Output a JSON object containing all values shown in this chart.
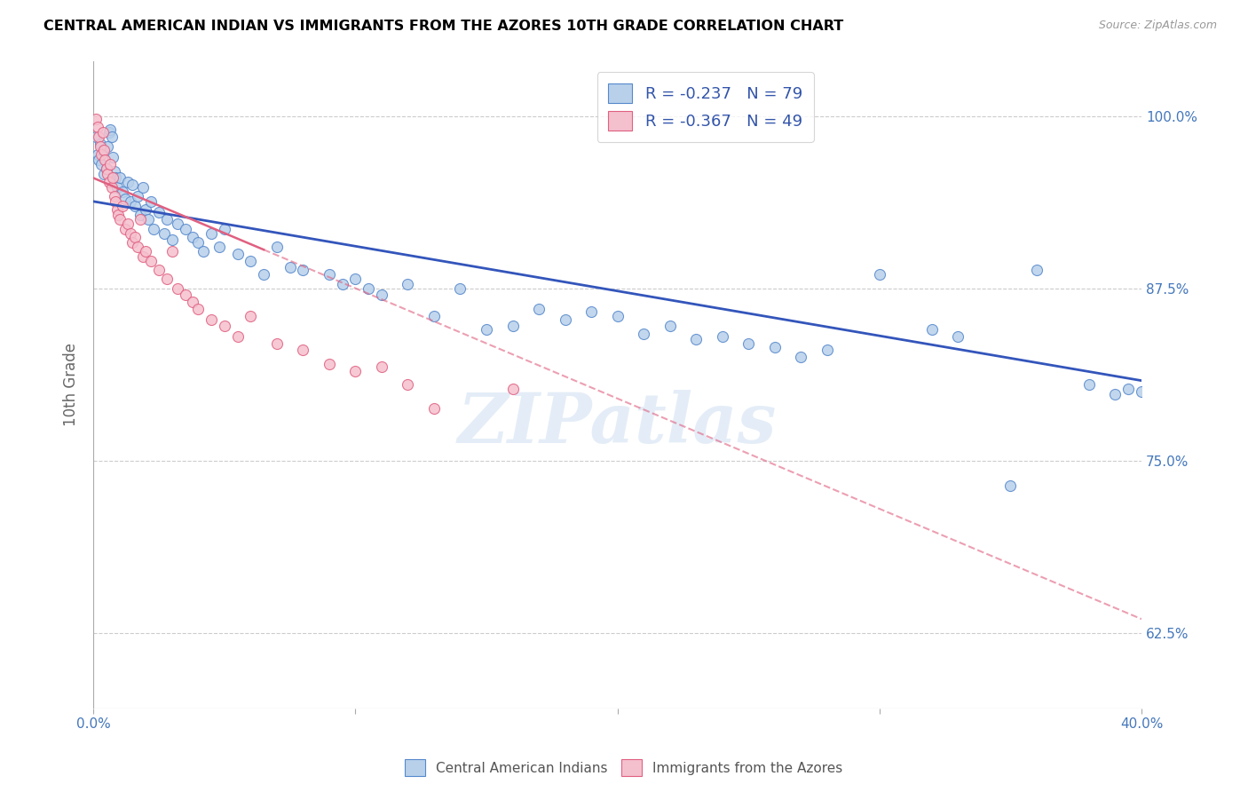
{
  "title": "CENTRAL AMERICAN INDIAN VS IMMIGRANTS FROM THE AZORES 10TH GRADE CORRELATION CHART",
  "source": "Source: ZipAtlas.com",
  "ylabel": "10th Grade",
  "y_ticks": [
    62.5,
    75.0,
    87.5,
    100.0
  ],
  "y_tick_labels": [
    "62.5%",
    "75.0%",
    "87.5%",
    "100.0%"
  ],
  "x_range": [
    0.0,
    40.0
  ],
  "y_range": [
    57.0,
    104.0
  ],
  "legend_blue_r": "R = -0.237",
  "legend_blue_n": "N = 79",
  "legend_pink_r": "R = -0.367",
  "legend_pink_n": "N = 49",
  "blue_color": "#b8d0ea",
  "blue_edge": "#5588cc",
  "pink_color": "#f5c0ce",
  "pink_edge": "#e06080",
  "trendline_blue": "#3355bb",
  "trendline_pink": "#e06080",
  "blue_scatter": [
    [
      0.1,
      98.5
    ],
    [
      0.15,
      97.2
    ],
    [
      0.2,
      96.8
    ],
    [
      0.25,
      98.0
    ],
    [
      0.3,
      96.5
    ],
    [
      0.35,
      97.5
    ],
    [
      0.4,
      95.8
    ],
    [
      0.5,
      96.2
    ],
    [
      0.55,
      97.8
    ],
    [
      0.6,
      98.8
    ],
    [
      0.65,
      99.0
    ],
    [
      0.7,
      98.5
    ],
    [
      0.75,
      97.0
    ],
    [
      0.8,
      96.0
    ],
    [
      0.85,
      95.5
    ],
    [
      0.9,
      94.8
    ],
    [
      1.0,
      95.5
    ],
    [
      1.1,
      94.5
    ],
    [
      1.2,
      94.0
    ],
    [
      1.3,
      95.2
    ],
    [
      1.4,
      93.8
    ],
    [
      1.5,
      95.0
    ],
    [
      1.6,
      93.5
    ],
    [
      1.7,
      94.2
    ],
    [
      1.8,
      92.8
    ],
    [
      1.9,
      94.8
    ],
    [
      2.0,
      93.2
    ],
    [
      2.1,
      92.5
    ],
    [
      2.2,
      93.8
    ],
    [
      2.3,
      91.8
    ],
    [
      2.5,
      93.0
    ],
    [
      2.7,
      91.5
    ],
    [
      2.8,
      92.5
    ],
    [
      3.0,
      91.0
    ],
    [
      3.2,
      92.2
    ],
    [
      3.5,
      91.8
    ],
    [
      3.8,
      91.2
    ],
    [
      4.0,
      90.8
    ],
    [
      4.2,
      90.2
    ],
    [
      4.5,
      91.5
    ],
    [
      4.8,
      90.5
    ],
    [
      5.0,
      91.8
    ],
    [
      5.5,
      90.0
    ],
    [
      6.0,
      89.5
    ],
    [
      6.5,
      88.5
    ],
    [
      7.0,
      90.5
    ],
    [
      7.5,
      89.0
    ],
    [
      8.0,
      88.8
    ],
    [
      9.0,
      88.5
    ],
    [
      9.5,
      87.8
    ],
    [
      10.0,
      88.2
    ],
    [
      10.5,
      87.5
    ],
    [
      11.0,
      87.0
    ],
    [
      12.0,
      87.8
    ],
    [
      13.0,
      85.5
    ],
    [
      14.0,
      87.5
    ],
    [
      15.0,
      84.5
    ],
    [
      16.0,
      84.8
    ],
    [
      17.0,
      86.0
    ],
    [
      18.0,
      85.2
    ],
    [
      19.0,
      85.8
    ],
    [
      20.0,
      85.5
    ],
    [
      21.0,
      84.2
    ],
    [
      22.0,
      84.8
    ],
    [
      23.0,
      83.8
    ],
    [
      24.0,
      84.0
    ],
    [
      25.0,
      83.5
    ],
    [
      26.0,
      83.2
    ],
    [
      27.0,
      82.5
    ],
    [
      28.0,
      83.0
    ],
    [
      30.0,
      88.5
    ],
    [
      32.0,
      84.5
    ],
    [
      33.0,
      84.0
    ],
    [
      35.0,
      73.2
    ],
    [
      36.0,
      88.8
    ],
    [
      38.0,
      80.5
    ],
    [
      39.0,
      79.8
    ],
    [
      39.5,
      80.2
    ],
    [
      40.0,
      80.0
    ]
  ],
  "pink_scatter": [
    [
      0.1,
      99.8
    ],
    [
      0.15,
      99.2
    ],
    [
      0.2,
      98.5
    ],
    [
      0.25,
      97.8
    ],
    [
      0.3,
      97.2
    ],
    [
      0.35,
      98.8
    ],
    [
      0.4,
      97.5
    ],
    [
      0.45,
      96.8
    ],
    [
      0.5,
      96.2
    ],
    [
      0.55,
      95.8
    ],
    [
      0.6,
      95.2
    ],
    [
      0.65,
      96.5
    ],
    [
      0.7,
      94.8
    ],
    [
      0.75,
      95.5
    ],
    [
      0.8,
      94.2
    ],
    [
      0.85,
      93.8
    ],
    [
      0.9,
      93.2
    ],
    [
      0.95,
      92.8
    ],
    [
      1.0,
      92.5
    ],
    [
      1.1,
      93.5
    ],
    [
      1.2,
      91.8
    ],
    [
      1.3,
      92.2
    ],
    [
      1.4,
      91.5
    ],
    [
      1.5,
      90.8
    ],
    [
      1.6,
      91.2
    ],
    [
      1.7,
      90.5
    ],
    [
      1.8,
      92.5
    ],
    [
      1.9,
      89.8
    ],
    [
      2.0,
      90.2
    ],
    [
      2.2,
      89.5
    ],
    [
      2.5,
      88.8
    ],
    [
      2.8,
      88.2
    ],
    [
      3.0,
      90.2
    ],
    [
      3.2,
      87.5
    ],
    [
      3.5,
      87.0
    ],
    [
      3.8,
      86.5
    ],
    [
      4.0,
      86.0
    ],
    [
      4.5,
      85.2
    ],
    [
      5.0,
      84.8
    ],
    [
      5.5,
      84.0
    ],
    [
      6.0,
      85.5
    ],
    [
      7.0,
      83.5
    ],
    [
      8.0,
      83.0
    ],
    [
      9.0,
      82.0
    ],
    [
      10.0,
      81.5
    ],
    [
      11.0,
      81.8
    ],
    [
      12.0,
      80.5
    ],
    [
      13.0,
      78.8
    ],
    [
      16.0,
      80.2
    ]
  ],
  "blue_trend_x": [
    0.0,
    40.0
  ],
  "blue_trend_y": [
    93.8,
    80.8
  ],
  "pink_trend_x": [
    0.0,
    40.0
  ],
  "pink_trend_y": [
    95.5,
    63.5
  ],
  "pink_solid_end_x": 6.5,
  "watermark": "ZIPatlas",
  "marker_size": 75
}
